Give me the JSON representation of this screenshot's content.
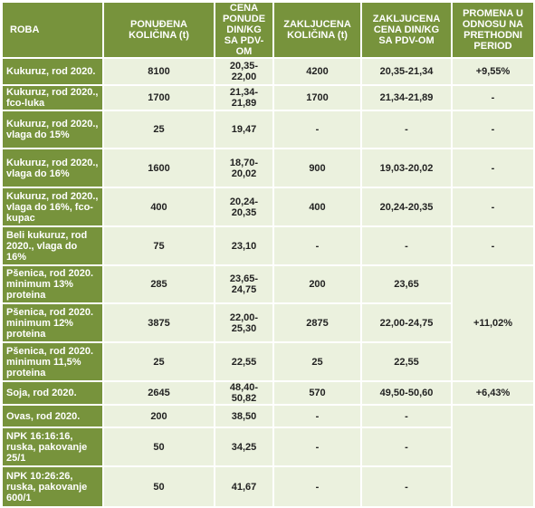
{
  "table": {
    "header": [
      "ROBA",
      "PONUĐENA KOLIČINA (t)",
      "CENA PONUDE DIN/KG SA PDV-OM",
      "ZAKLJUCENA KOLIČINA (t)",
      "ZAKLJUCENA CENA DIN/KG SA PDV-OM",
      "PROMENA U ODNOSU NA PRETHODNI PERIOD"
    ],
    "rows": [
      [
        "Kukuruz, rod 2020.",
        "8100",
        "20,35-22,00",
        "4200",
        "20,35-21,34",
        "+9,55%"
      ],
      [
        "Kukuruz, rod 2020., fco-luka",
        "1700",
        "21,34-21,89",
        "1700",
        "21,34-21,89",
        "-"
      ],
      [
        "Kukuruz, rod 2020., vlaga do 15%",
        "25",
        "19,47",
        "-",
        "-",
        "-"
      ],
      [
        "Kukuruz, rod 2020., vlaga do 16%",
        "1600",
        "18,70-20,02",
        "900",
        "19,03-20,02",
        "-"
      ],
      [
        "Kukuruz, rod 2020., vlaga do 16%, fco-kupac",
        "400",
        "20,24-20,35",
        "400",
        "20,24-20,35",
        "-"
      ],
      [
        "Beli kukuruz, rod 2020., vlaga do 16%",
        "75",
        "23,10",
        "-",
        "-",
        "-"
      ],
      [
        "Pšenica, rod 2020. minimum 13% proteina",
        "285",
        "23,65-24,75",
        "200",
        "23,65",
        "+11,02%"
      ],
      [
        "Pšenica, rod 2020. minimum 12% proteina",
        "3875",
        "22,00-25,30",
        "2875",
        "22,00-24,75"
      ],
      [
        "Pšenica, rod 2020. minimum 11,5% proteina",
        "25",
        "22,55",
        "25",
        "22,55"
      ],
      [
        "Soja, rod 2020.",
        "2645",
        "48,40-50,82",
        "570",
        "49,50-50,60",
        "+6,43%"
      ],
      [
        "Ovas, rod 2020.",
        "200",
        "38,50",
        "-",
        "-"
      ],
      [
        "NPK 16:16:16, ruska, pakovanje 25/1",
        "50",
        "34,25",
        "-",
        "-"
      ],
      [
        "NPK 10:26:26, ruska, pakovanje 600/1",
        "50",
        "41,67",
        "-",
        "-"
      ]
    ]
  }
}
